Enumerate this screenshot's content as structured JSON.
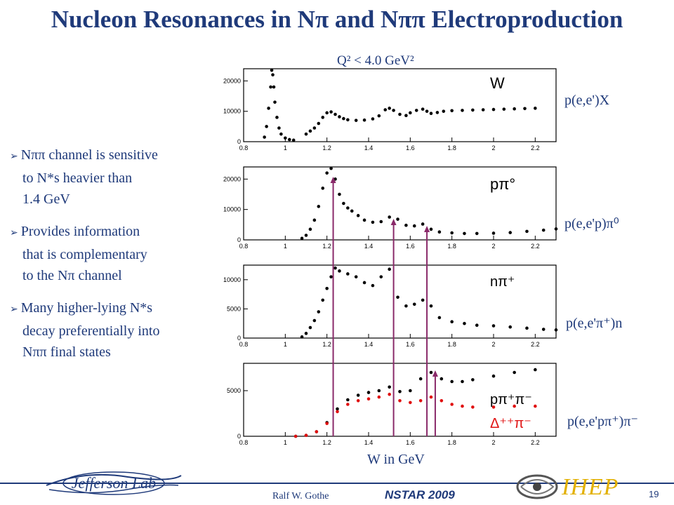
{
  "title": "Nucleon Resonances in Nπ and Nππ Electroproduction",
  "q2_label": "Q² < 4.0 GeV²",
  "bullets": [
    {
      "lines": [
        "Nππ channel is sensitive",
        "to N*s heavier than",
        "1.4 GeV"
      ]
    },
    {
      "lines": [
        "Provides information",
        "that is complementary",
        "to the Nπ channel"
      ]
    },
    {
      "lines": [
        "Many higher-lying N*s",
        "decay preferentially into",
        "Nππ final states"
      ]
    }
  ],
  "reactions": [
    "p(e,e')X",
    "p(e,e'p)π⁰",
    "p(e,e'π⁺)n",
    "p(e,e'pπ⁺)π⁻"
  ],
  "xlabel": "W in GeV",
  "footer": {
    "author": "Ralf W. Gothe",
    "conference": "NSTAR 2009",
    "page": "19",
    "institute": "IHEP",
    "lab": "Jefferson Lab"
  },
  "colors": {
    "text": "#1f3a7a",
    "black_points": "#000000",
    "red_points": "#e01010",
    "arrows": "#8a2a6a",
    "ihep": "#e2b000"
  },
  "chart_data": [
    {
      "type": "scatter",
      "label": "W",
      "xlim": [
        0.8,
        2.3
      ],
      "ylim": [
        0,
        24000
      ],
      "xticks": [
        "0.8",
        "1",
        "1.2",
        "1.4",
        "1.6",
        "1.8",
        "2",
        "2.2"
      ],
      "yticks": [
        "0",
        "10000",
        "20000"
      ],
      "series": [
        {
          "name": "",
          "color": "#000000",
          "x": [
            0.9,
            0.91,
            0.92,
            0.93,
            0.935,
            0.94,
            0.945,
            0.95,
            0.96,
            0.97,
            0.98,
            1.0,
            1.02,
            1.04,
            1.1,
            1.12,
            1.14,
            1.16,
            1.18,
            1.2,
            1.22,
            1.24,
            1.26,
            1.28,
            1.3,
            1.34,
            1.38,
            1.42,
            1.45,
            1.48,
            1.5,
            1.52,
            1.55,
            1.58,
            1.6,
            1.63,
            1.66,
            1.68,
            1.7,
            1.73,
            1.76,
            1.8,
            1.85,
            1.9,
            1.95,
            2.0,
            2.05,
            2.1,
            2.15,
            2.2
          ],
          "y": [
            1500,
            5000,
            11000,
            18000,
            23500,
            22000,
            18000,
            13000,
            8000,
            4500,
            2500,
            1200,
            700,
            500,
            2500,
            3500,
            4500,
            6000,
            8000,
            9500,
            9800,
            9000,
            8200,
            7600,
            7200,
            7000,
            7100,
            7500,
            8500,
            10500,
            11000,
            10300,
            9000,
            8600,
            9500,
            10300,
            10700,
            10000,
            9300,
            9600,
            10000,
            10200,
            10300,
            10400,
            10500,
            10600,
            10700,
            10800,
            10900,
            11000
          ]
        }
      ]
    },
    {
      "type": "scatter",
      "label": "pπ°",
      "xlim": [
        0.8,
        2.3
      ],
      "ylim": [
        0,
        24000
      ],
      "xticks": [
        "0.8",
        "1",
        "1.2",
        "1.4",
        "1.6",
        "1.8",
        "2",
        "2.2"
      ],
      "yticks": [
        "0",
        "10000",
        "20000"
      ],
      "series": [
        {
          "name": "",
          "color": "#000000",
          "x": [
            1.08,
            1.1,
            1.12,
            1.14,
            1.16,
            1.18,
            1.2,
            1.22,
            1.24,
            1.26,
            1.28,
            1.3,
            1.32,
            1.35,
            1.38,
            1.42,
            1.46,
            1.5,
            1.54,
            1.58,
            1.62,
            1.66,
            1.7,
            1.74,
            1.8,
            1.86,
            1.92,
            2.0,
            2.08,
            2.16,
            2.24,
            2.3
          ],
          "y": [
            500,
            1500,
            3500,
            6500,
            11000,
            17000,
            22000,
            23500,
            20000,
            15000,
            12000,
            10500,
            9500,
            8000,
            6500,
            5800,
            6000,
            7500,
            6800,
            4800,
            4600,
            5200,
            3500,
            2600,
            2300,
            2100,
            2100,
            2200,
            2400,
            2800,
            3200,
            3600
          ]
        }
      ]
    },
    {
      "type": "scatter",
      "label": "nπ⁺",
      "xlim": [
        0.8,
        2.3
      ],
      "ylim": [
        0,
        12500
      ],
      "xticks": [
        "0.8",
        "1",
        "1.2",
        "1.4",
        "1.6",
        "1.8",
        "2",
        "2.2"
      ],
      "yticks": [
        "0",
        "5000",
        "10000"
      ],
      "series": [
        {
          "name": "",
          "color": "#000000",
          "x": [
            1.08,
            1.1,
            1.12,
            1.14,
            1.16,
            1.18,
            1.2,
            1.22,
            1.24,
            1.26,
            1.3,
            1.34,
            1.38,
            1.42,
            1.46,
            1.5,
            1.54,
            1.58,
            1.62,
            1.66,
            1.7,
            1.74,
            1.8,
            1.86,
            1.92,
            2.0,
            2.08,
            2.16,
            2.24,
            2.3
          ],
          "y": [
            200,
            800,
            1800,
            3000,
            4500,
            6500,
            8500,
            10500,
            12000,
            11500,
            11000,
            10500,
            9500,
            9000,
            10500,
            11800,
            7000,
            5500,
            5800,
            6500,
            5500,
            3500,
            2800,
            2500,
            2200,
            2100,
            1900,
            1700,
            1500,
            1400
          ]
        }
      ]
    },
    {
      "type": "scatter",
      "label": "pπ⁺π⁻ / Δ⁺⁺π⁻",
      "xlim": [
        0.8,
        2.3
      ],
      "ylim": [
        0,
        8000
      ],
      "xticks": [
        "0.8",
        "1",
        "1.2",
        "1.4",
        "1.6",
        "1.8",
        "2",
        "2.2"
      ],
      "yticks": [
        "0",
        "5000"
      ],
      "series": [
        {
          "name": "pπ⁺π⁻",
          "color": "#000000",
          "x": [
            1.05,
            1.1,
            1.15,
            1.2,
            1.25,
            1.3,
            1.35,
            1.4,
            1.45,
            1.5,
            1.55,
            1.6,
            1.65,
            1.7,
            1.75,
            1.8,
            1.85,
            1.9,
            2.0,
            2.1,
            2.2
          ],
          "y": [
            0,
            100,
            500,
            1500,
            3000,
            4000,
            4500,
            4800,
            5000,
            5400,
            4900,
            5000,
            6300,
            7000,
            6300,
            6000,
            6000,
            6200,
            6600,
            7000,
            7300
          ]
        },
        {
          "name": "Δ⁺⁺π⁻",
          "color": "#e01010",
          "x": [
            1.05,
            1.1,
            1.15,
            1.2,
            1.25,
            1.3,
            1.35,
            1.4,
            1.45,
            1.5,
            1.55,
            1.6,
            1.65,
            1.7,
            1.75,
            1.8,
            1.85,
            1.9,
            2.0,
            2.1,
            2.2
          ],
          "y": [
            0,
            100,
            500,
            1400,
            2700,
            3500,
            3900,
            4100,
            4300,
            4600,
            3900,
            3700,
            3900,
            4300,
            3900,
            3500,
            3300,
            3200,
            3200,
            3300,
            3300
          ]
        }
      ]
    }
  ],
  "resonance_markers_w": [
    1.23,
    1.52,
    1.68,
    1.72
  ]
}
